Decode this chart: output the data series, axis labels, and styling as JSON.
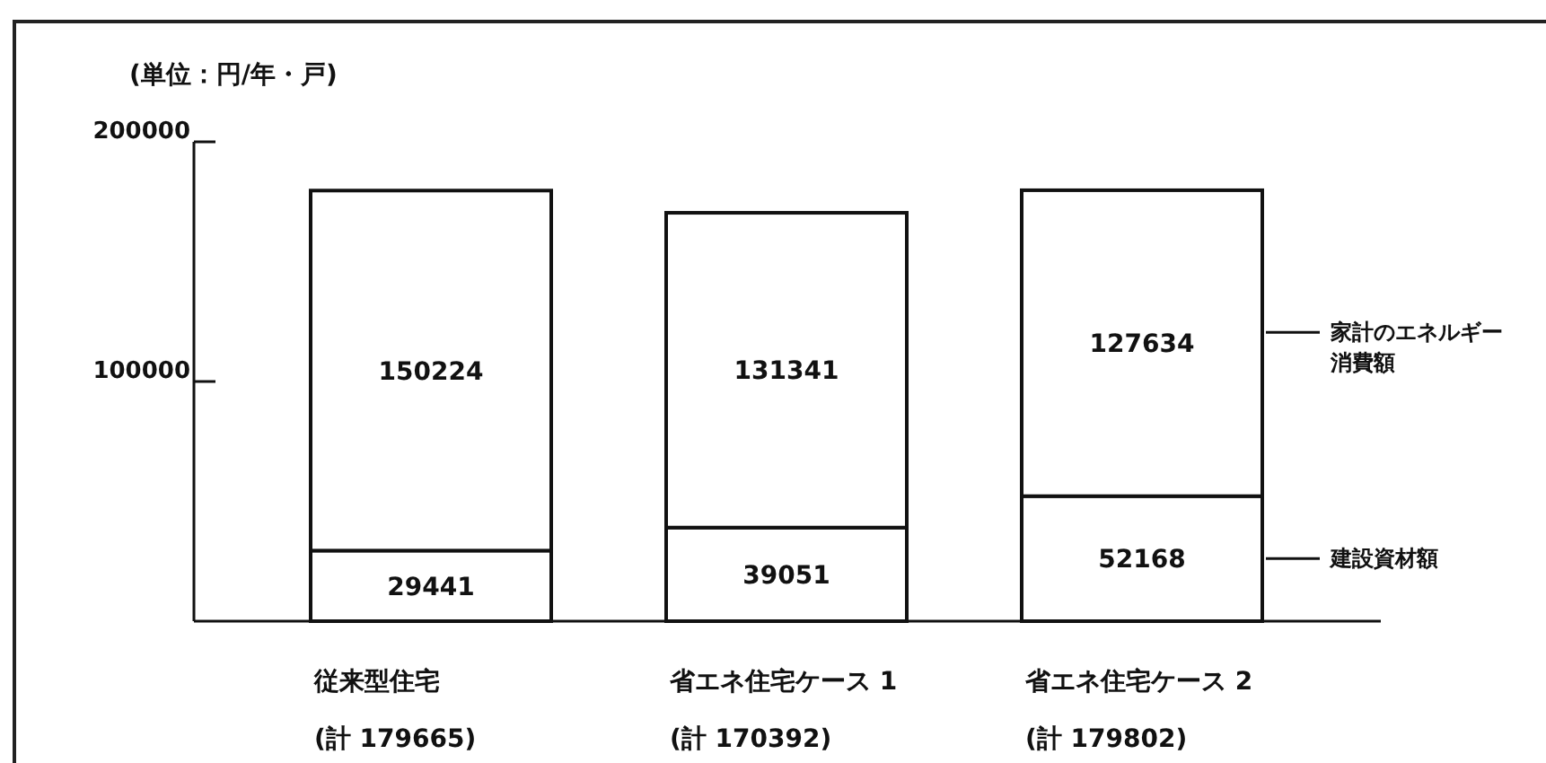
{
  "chart_data": {
    "type": "bar",
    "stacked": true,
    "ylabel": "(単位：円/年・戸)",
    "categories": [
      "従来型住宅\n(計 179665)",
      "省エネ住宅ケース 1\n(計 170392)",
      "省エネ住宅ケース 2\n(計 179802)"
    ],
    "series": [
      {
        "name": "建設資材額",
        "color": "#ffffff",
        "values": [
          29441,
          39051,
          52168
        ]
      },
      {
        "name": "家計のエネルギー消費額",
        "color": "#ffffff",
        "values": [
          150224,
          131341,
          127634
        ]
      }
    ],
    "data_labels": true,
    "ylim": [
      0,
      200000
    ],
    "yticks": [
      100000,
      200000
    ],
    "legend": "right"
  }
}
